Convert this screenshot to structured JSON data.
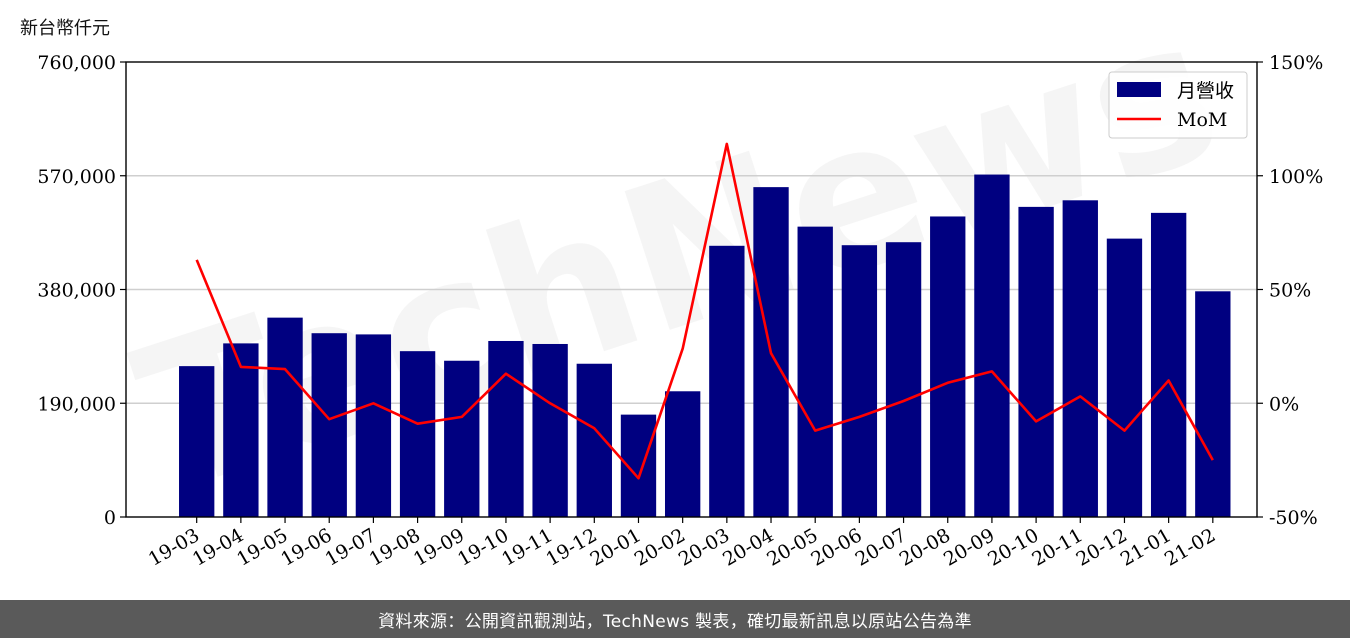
{
  "footer": {
    "source_note": "資料來源：公開資訊觀測站，TechNews 製表，確切最新訊息以原站公告為準"
  },
  "watermark": {
    "text": "TechNews"
  },
  "chart_data": {
    "type": "bar+line",
    "ylabel_left": "新台幣仟元",
    "categories": [
      "19-03",
      "19-04",
      "19-05",
      "19-06",
      "19-07",
      "19-08",
      "19-09",
      "19-10",
      "19-11",
      "19-12",
      "20-01",
      "20-02",
      "20-03",
      "20-04",
      "20-05",
      "20-06",
      "20-07",
      "20-08",
      "20-09",
      "20-10",
      "20-11",
      "20-12",
      "21-01",
      "21-02"
    ],
    "series": [
      {
        "name": "月營收",
        "kind": "bar",
        "axis": "left",
        "color": "#000080",
        "values": [
          252000,
          290000,
          333000,
          307000,
          305000,
          277000,
          261000,
          294000,
          289000,
          256000,
          171000,
          210000,
          453000,
          551000,
          485000,
          454000,
          459000,
          502000,
          572000,
          518000,
          529000,
          465000,
          508000,
          377000
        ]
      },
      {
        "name": "MoM",
        "kind": "line",
        "axis": "right",
        "color": "#ff0000",
        "values": [
          63,
          16,
          15,
          -7,
          0,
          -9,
          -6,
          13,
          0,
          -11,
          -33,
          24,
          114,
          22,
          -12,
          -6,
          1,
          9,
          14,
          -8,
          3,
          -12,
          10,
          -25
        ]
      }
    ],
    "y_left": {
      "min": 0,
      "max": 760000,
      "ticks": [
        0,
        190000,
        380000,
        570000,
        760000
      ],
      "tick_labels": [
        "0",
        "190,000",
        "380,000",
        "570,000",
        "760,000"
      ]
    },
    "y_right": {
      "min": -50,
      "max": 150,
      "ticks": [
        -50,
        0,
        50,
        100,
        150
      ],
      "tick_labels": [
        "-50%",
        "0%",
        "50%",
        "100%",
        "150%"
      ]
    },
    "grid": "horizontal",
    "legend": {
      "position": "top-right",
      "entries": [
        "月營收",
        "MoM"
      ]
    }
  }
}
